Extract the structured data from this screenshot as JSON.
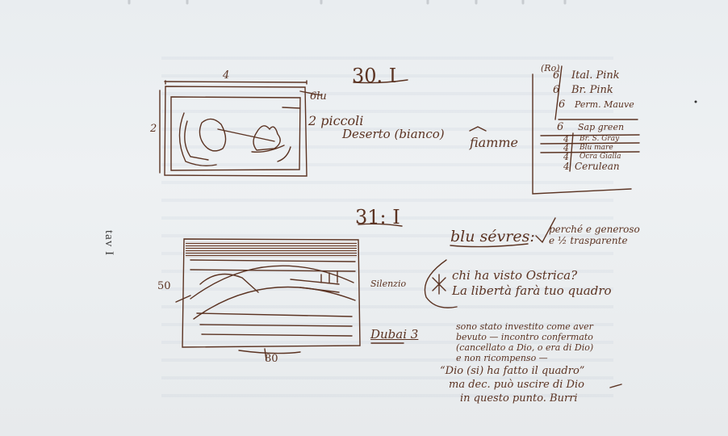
{
  "side_label": "tav I",
  "sheet": {
    "top": {
      "date": "30. I",
      "frame_width": "4",
      "frame_height": "2",
      "side_mark": "6lu",
      "notes": [
        "2 piccoli",
        "Deserto (bianco)",
        "fiamme"
      ]
    },
    "color_table": {
      "header": "(Ro)",
      "rows": [
        {
          "qty": "6",
          "name": "Ital. Pink"
        },
        {
          "qty": "6",
          "name": "Br. Pink"
        },
        {
          "qty": "6",
          "name": "Perm. Mauve"
        },
        {
          "qty": "6",
          "name": "Sap green"
        },
        {
          "qty": "4",
          "name": "Br. S. Gray"
        },
        {
          "qty": "4",
          "name": "Blu mare"
        },
        {
          "qty": "4",
          "name": "Ocra Gialla"
        },
        {
          "qty": "4",
          "name": "Cerulean"
        }
      ]
    },
    "bottom": {
      "date": "31: I",
      "frame_height": "50",
      "frame_width": "80",
      "labels": [
        "Silenzio",
        "Dubai 3"
      ],
      "title_note": "blu sévres:",
      "title_note_after": "perché e generoso e ½ trasparente",
      "question": [
        "chi ha visto Ostrica?",
        "La libertà farà tuo quadro"
      ],
      "paragraph": [
        "sono stato investito come aver",
        "bevuto — incontro confermato",
        "(cancellato a Dio, o era di Dio)",
        "e non ricompenso —"
      ],
      "quote": [
        "“Dio (si) ha fatto il quadro”",
        "ma dec. può uscire di Dio",
        "in questo punto. Burri"
      ]
    }
  }
}
